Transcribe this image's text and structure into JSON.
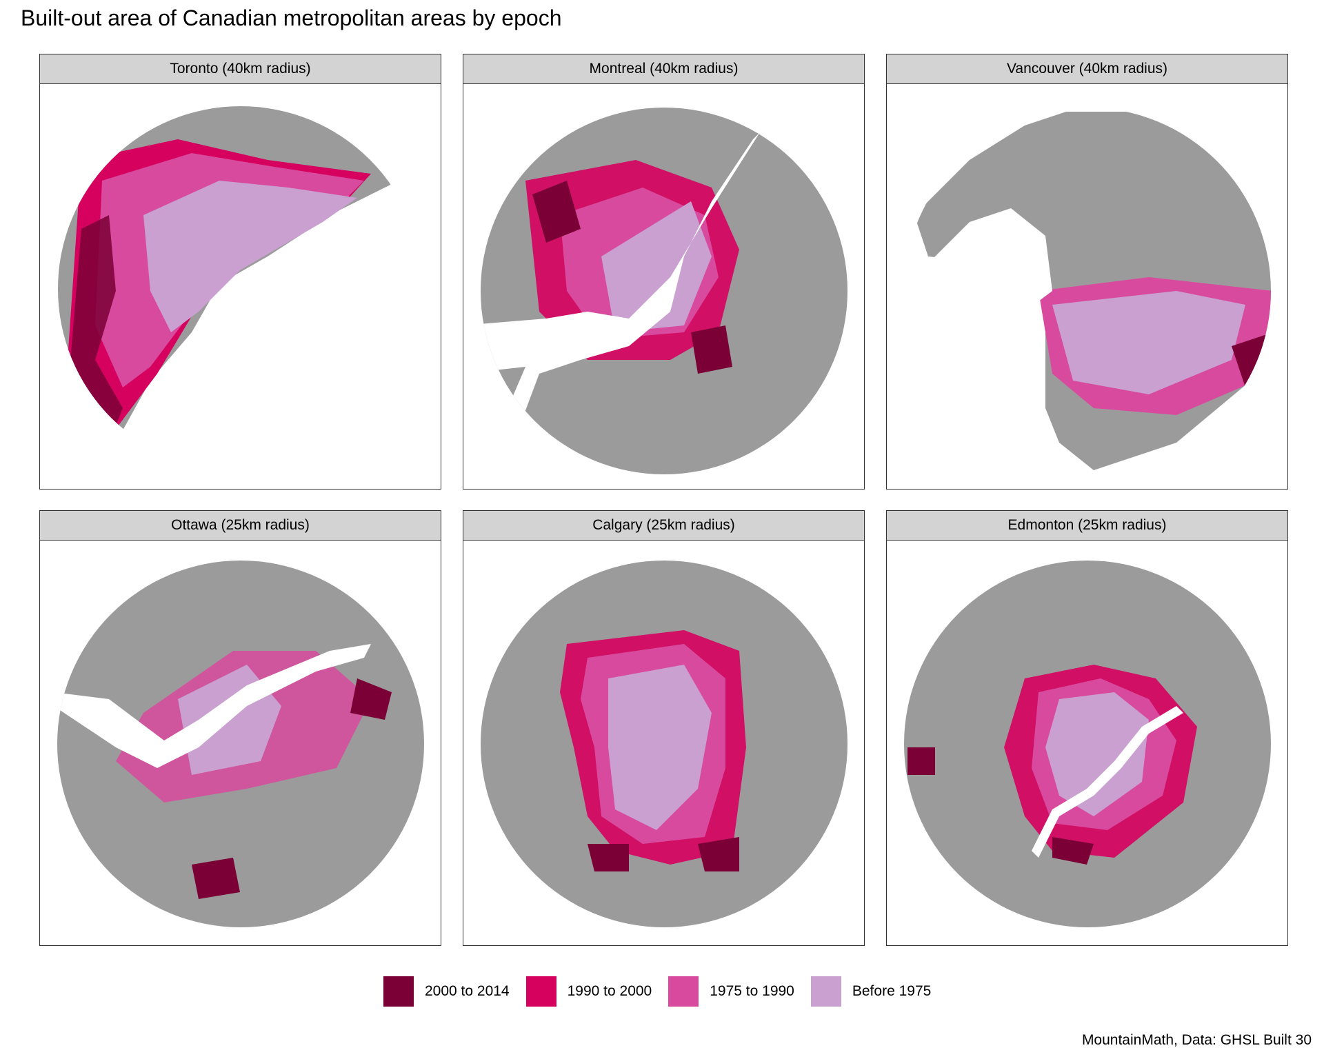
{
  "title": "Built-out area of Canadian metropolitan areas by epoch",
  "caption": "MountainMath, Data: GHSL Built 30",
  "colors": {
    "2000 to 2014": "#7a0036",
    "1990 to 2000": "#d6005f",
    "1975 to 1990": "#d84a9e",
    "Before 1975": "#c9a0d0",
    "land": "#9b9b9b",
    "water": "#ffffff"
  },
  "legend": [
    {
      "label": "2000 to 2014",
      "color": "#7a0036"
    },
    {
      "label": "1990 to 2000",
      "color": "#d6005f"
    },
    {
      "label": "1975 to 1990",
      "color": "#d84a9e"
    },
    {
      "label": "Before 1975",
      "color": "#c9a0d0"
    }
  ],
  "panels": [
    {
      "label": "Toronto (40km radius)"
    },
    {
      "label": "Montreal (40km radius)"
    },
    {
      "label": "Vancouver (40km radius)"
    },
    {
      "label": "Ottawa (25km radius)"
    },
    {
      "label": "Calgary (25km radius)"
    },
    {
      "label": "Edmonton (25km radius)"
    }
  ]
}
